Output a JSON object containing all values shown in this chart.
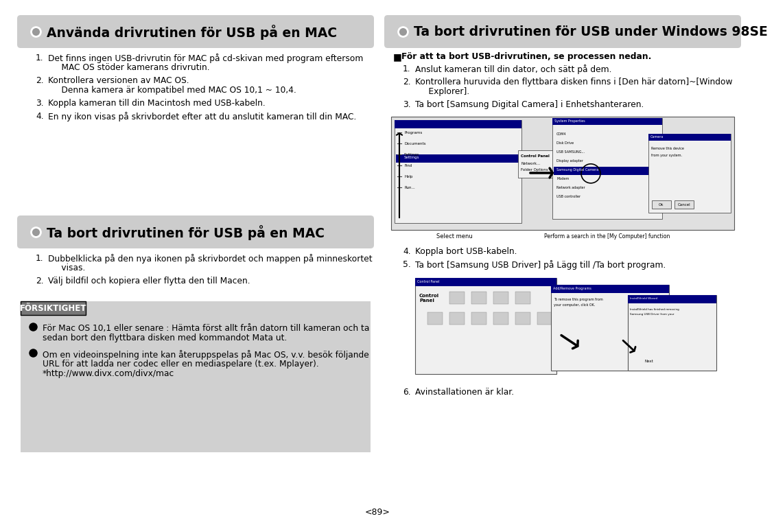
{
  "bg_color": "#ffffff",
  "page_number": "<89>",
  "header1_title": "Använda drivrutinen för USB på en MAC",
  "header2_title": "Ta bort drivrutinen för USB på en MAC",
  "header3_title": "Ta bort drivrutinen för USB under Windows 98SE",
  "sec1_items": [
    [
      "1.",
      "Det finns ingen USB-drivrutin för MAC på cd-skivan med program eftersom",
      "     MAC OS stöder kamerans drivrutin."
    ],
    [
      "2.",
      "Kontrollera versionen av MAC OS.",
      "     Denna kamera är kompatibel med MAC OS 10,1 ~ 10,4."
    ],
    [
      "3.",
      "Koppla kameran till din Macintosh med USB-kabeln.",
      ""
    ],
    [
      "4.",
      "En ny ikon visas på skrivbordet efter att du anslutit kameran till din MAC.",
      ""
    ]
  ],
  "sec2_items": [
    [
      "1.",
      "Dubbelklicka på den nya ikonen på skrivbordet och mappen på minneskortet",
      "     visas."
    ],
    [
      "2.",
      "Välj bildfil och kopiera eller flytta den till Macen.",
      ""
    ]
  ],
  "caution_title": "FÖRSIKTIGHET",
  "caution_items": [
    [
      "För Mac OS 10,1 eller senare : Hämta först allt från datorn till kameran och ta",
      "sedan bort den flyttbara disken med kommandot Mata ut."
    ],
    [
      "Om en videoinspelning inte kan återuppspelas på Mac OS, v.v. besök följande",
      "URL för att ladda ner codec eller en mediaspelare (t.ex. Mplayer).",
      "*http://www.divx.com/divx/mac"
    ]
  ],
  "sec3_intro": "För att ta bort USB-drivrutinen, se processen nedan.",
  "sec3_items1": [
    [
      "1.",
      "Anslut kameran till din dator, och sätt på dem.",
      ""
    ],
    [
      "2.",
      "Kontrollera huruvida den flyttbara disken finns i [Den här datorn]~[Window",
      "     Explorer]."
    ],
    [
      "3.",
      "Ta bort [Samsung Digital Camera] i Enhetshanteraren.",
      ""
    ]
  ],
  "sec3_items2": [
    [
      "4.",
      "Koppla bort USB-kabeln.",
      ""
    ],
    [
      "5.",
      "Ta bort [Samsung USB Driver] på Lägg till /Ta bort program.",
      ""
    ]
  ],
  "sec3_item3": "Avinstallationen är klar.",
  "header_color": "#cccccc",
  "caution_bg": "#d0d0d0",
  "caution_title_bg": "#777777",
  "body_fontsize": 8.8,
  "title_fontsize": 13.5
}
